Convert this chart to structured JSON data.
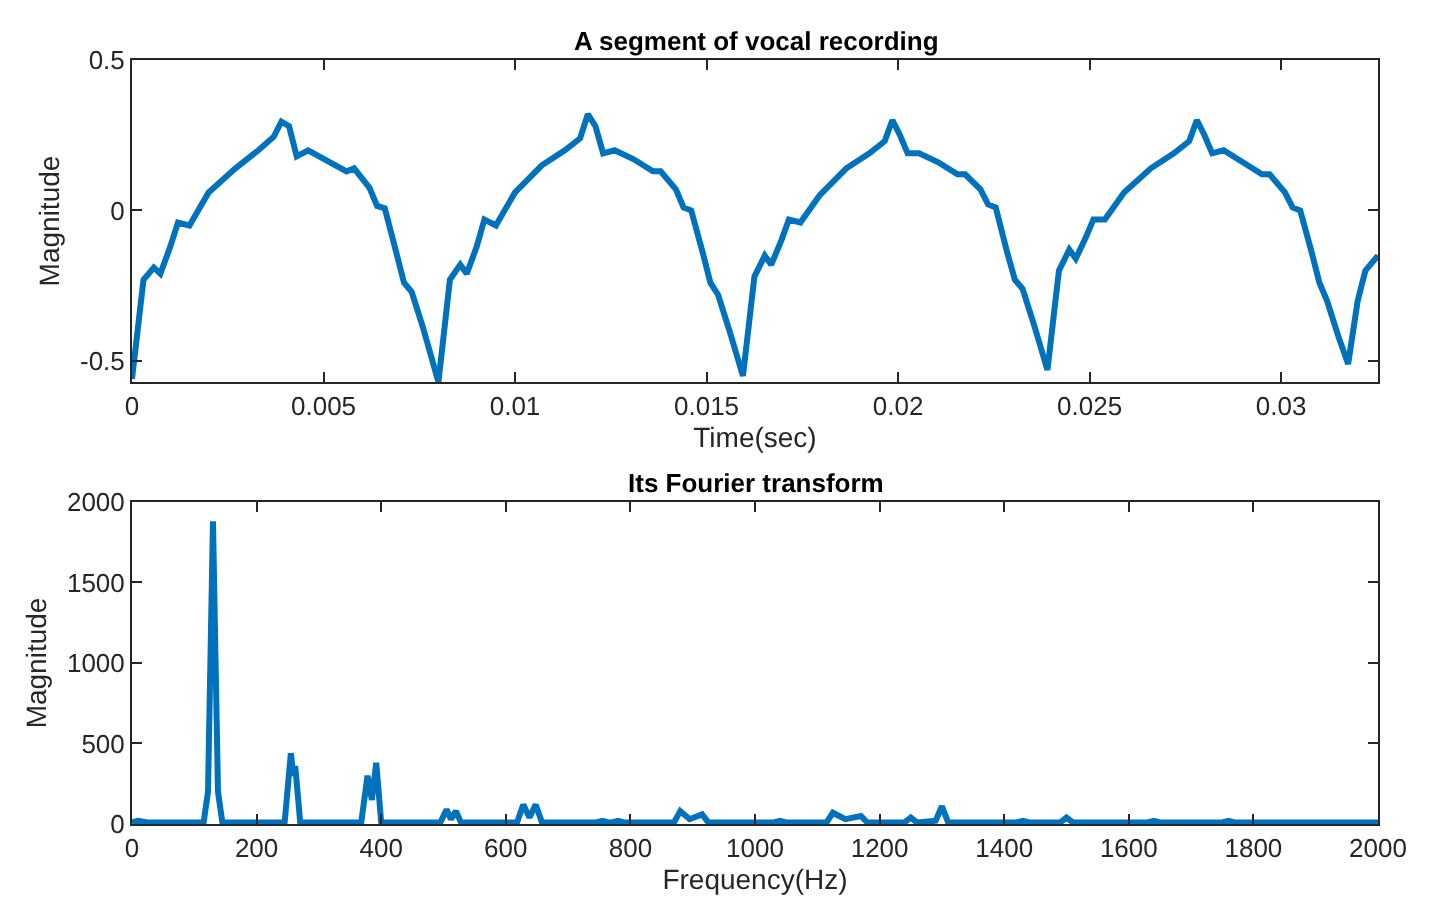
{
  "chart_data": [
    {
      "type": "line",
      "title": "A segment of vocal recording",
      "xlabel": "Time(sec)",
      "ylabel": "Magnitude",
      "xlim": [
        0,
        0.03253
      ],
      "ylim": [
        -0.57,
        0.5
      ],
      "xticks": [
        0,
        0.005,
        0.01,
        0.015,
        0.02,
        0.025,
        0.03
      ],
      "yticks": [
        -0.5,
        0,
        0.5
      ],
      "marker": "none",
      "line_style": "solid",
      "x": [
        0,
        0.0003,
        0.00057,
        0.00074,
        0.001,
        0.0012,
        0.0015,
        0.002,
        0.0027,
        0.0033,
        0.0037,
        0.0039,
        0.0041,
        0.0043,
        0.0046,
        0.0051,
        0.0056,
        0.0058,
        0.0062,
        0.0064,
        0.0066,
        0.0069,
        0.0071,
        0.0073,
        0.0076,
        0.008,
        0.0083,
        0.00857,
        0.00874,
        0.009,
        0.0092,
        0.0095,
        0.01,
        0.0107,
        0.0113,
        0.0117,
        0.0119,
        0.0121,
        0.0123,
        0.0126,
        0.0131,
        0.0136,
        0.0138,
        0.0142,
        0.0144,
        0.0146,
        0.0149,
        0.0151,
        0.0153,
        0.0156,
        0.01595,
        0.01625,
        0.01652,
        0.01669,
        0.01695,
        0.01715,
        0.01745,
        0.01795,
        0.01865,
        0.01925,
        0.01965,
        0.01985,
        0.02005,
        0.02025,
        0.02055,
        0.02105,
        0.02155,
        0.02175,
        0.02215,
        0.02235,
        0.02255,
        0.02285,
        0.02305,
        0.02325,
        0.02355,
        0.0239,
        0.0242,
        0.02447,
        0.02464,
        0.0249,
        0.0251,
        0.0254,
        0.0259,
        0.0266,
        0.0272,
        0.0276,
        0.0278,
        0.028,
        0.0282,
        0.0285,
        0.029,
        0.0295,
        0.0297,
        0.0301,
        0.0303,
        0.0305,
        0.0308,
        0.031,
        0.0312,
        0.0315,
        0.03175,
        0.032,
        0.0322,
        0.03253
      ],
      "series": [
        {
          "color": "#0072bd",
          "values": [
            -0.56,
            -0.23,
            -0.19,
            -0.21,
            -0.12,
            -0.04,
            -0.05,
            0.06,
            0.14,
            0.2,
            0.245,
            0.295,
            0.28,
            0.18,
            0.2,
            0.165,
            0.13,
            0.14,
            0.075,
            0.015,
            0.007,
            -0.14,
            -0.24,
            -0.27,
            -0.39,
            -0.57,
            -0.23,
            -0.18,
            -0.21,
            -0.12,
            -0.03,
            -0.05,
            0.06,
            0.15,
            0.2,
            0.24,
            0.32,
            0.28,
            0.19,
            0.2,
            0.17,
            0.13,
            0.13,
            0.07,
            0.01,
            0.0,
            -0.14,
            -0.24,
            -0.28,
            -0.4,
            -0.55,
            -0.22,
            -0.15,
            -0.18,
            -0.1,
            -0.03,
            -0.04,
            0.05,
            0.14,
            0.19,
            0.23,
            0.3,
            0.25,
            0.19,
            0.19,
            0.16,
            0.12,
            0.12,
            0.07,
            0.02,
            0.01,
            -0.14,
            -0.23,
            -0.26,
            -0.38,
            -0.53,
            -0.2,
            -0.13,
            -0.16,
            -0.09,
            -0.03,
            -0.03,
            0.06,
            0.14,
            0.19,
            0.23,
            0.3,
            0.25,
            0.19,
            0.2,
            0.16,
            0.12,
            0.12,
            0.06,
            0.01,
            0.0,
            -0.14,
            -0.24,
            -0.3,
            -0.42,
            -0.51,
            -0.3,
            -0.2,
            -0.15
          ]
        }
      ]
    },
    {
      "type": "line",
      "title": "Its Fourier transform",
      "xlabel": "Frequency(Hz)",
      "ylabel": "Magnitude",
      "xlim": [
        0,
        2000
      ],
      "ylim": [
        0,
        2000
      ],
      "xticks": [
        0,
        200,
        400,
        600,
        800,
        1000,
        1200,
        1400,
        1600,
        1800,
        2000
      ],
      "yticks": [
        0,
        500,
        1000,
        1500,
        2000
      ],
      "marker": "none",
      "line_style": "solid",
      "x": [
        0,
        10,
        25,
        115,
        122,
        130,
        138,
        145,
        245,
        255,
        259,
        262,
        270,
        368,
        378,
        385,
        392,
        400,
        495,
        505,
        512,
        520,
        528,
        618,
        628,
        638,
        648,
        658,
        745,
        755,
        765,
        770,
        780,
        790,
        870,
        880,
        895,
        915,
        925,
        1030,
        1040,
        1050,
        1115,
        1125,
        1145,
        1170,
        1180,
        1240,
        1250,
        1260,
        1290,
        1300,
        1310,
        1420,
        1430,
        1440,
        1490,
        1500,
        1510,
        1630,
        1640,
        1650,
        1750,
        1760,
        1770,
        2000
      ],
      "series": [
        {
          "color": "#0072bd",
          "values": [
            10,
            20,
            10,
            10,
            200,
            1880,
            200,
            10,
            10,
            440,
            300,
            360,
            10,
            10,
            300,
            150,
            380,
            10,
            10,
            90,
            30,
            80,
            10,
            10,
            120,
            40,
            120,
            10,
            10,
            20,
            10,
            10,
            20,
            10,
            10,
            80,
            30,
            60,
            10,
            10,
            20,
            10,
            10,
            70,
            30,
            50,
            10,
            10,
            40,
            10,
            20,
            110,
            10,
            10,
            20,
            10,
            10,
            40,
            10,
            10,
            20,
            10,
            10,
            20,
            10,
            10
          ]
        }
      ]
    }
  ]
}
